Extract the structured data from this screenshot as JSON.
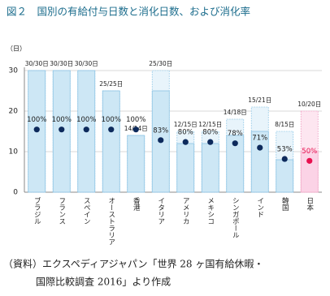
{
  "chart_data": {
    "type": "bar",
    "title": "図２　国別の有給付与日数と消化日数、および消化率",
    "y_label": "（日）",
    "categories": [
      "ブラジル",
      "フランス",
      "スペイン",
      "オーストラリア",
      "香港",
      "イタリア",
      "アメリカ",
      "メキシコ",
      "シンガポール",
      "インド",
      "韓国",
      "日本"
    ],
    "series": [
      {
        "name": "付与日数",
        "color": "#e8f4fb",
        "highlight_color": "#fde6f0",
        "values": [
          30,
          30,
          30,
          25,
          14,
          30,
          15,
          15,
          18,
          21,
          15,
          20
        ]
      },
      {
        "name": "消化日数",
        "color": "#cde7f5",
        "highlight_color": "#fbd3e6",
        "values": [
          30,
          30,
          30,
          25,
          14,
          25,
          12,
          12,
          14,
          15,
          8,
          10
        ],
        "value_labels": [
          "30/30日",
          "30/30日",
          "30/30日",
          "25/25日",
          "14/14日",
          "25/30日",
          "12/15日",
          "12/15日",
          "14/18日",
          "15/21日",
          "8/15日",
          "10/20日"
        ]
      },
      {
        "name": "消化率",
        "axis": "y2",
        "color": "#0d2a5c",
        "highlight_color": "#e8104f",
        "values": [
          100,
          100,
          100,
          100,
          100,
          83,
          80,
          80,
          78,
          71,
          53,
          50
        ],
        "value_labels": [
          "100%",
          "100%",
          "100%",
          "100%",
          "100%",
          "83%",
          "80%",
          "80%",
          "78%",
          "71%",
          "53%",
          "50%"
        ]
      }
    ],
    "highlight_category": "日本",
    "ylim": [
      0,
      30
    ],
    "yticks": [
      0,
      10,
      20,
      30
    ],
    "y2lim": [
      0,
      194
    ],
    "grid": true,
    "source": [
      "（資料）エクスペディアジャパン「世界 28 ヶ国有給休暇・",
      "国際比較調査 2016」より作成"
    ]
  }
}
